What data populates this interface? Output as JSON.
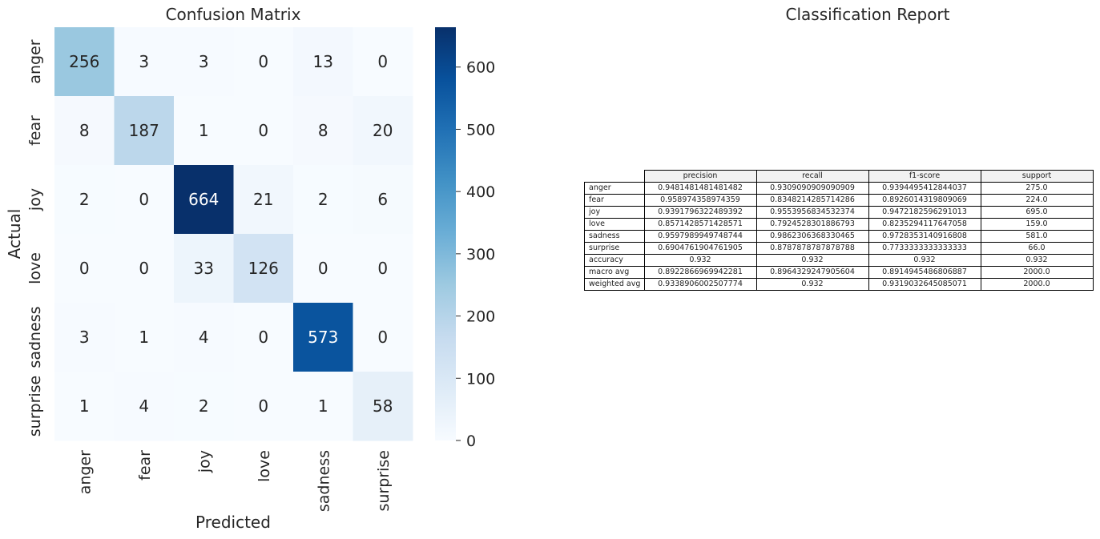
{
  "chart_data": [
    {
      "type": "heatmap",
      "title": "Confusion Matrix",
      "xlabel": "Predicted",
      "ylabel": "Actual",
      "x_categories": [
        "anger",
        "fear",
        "joy",
        "love",
        "sadness",
        "surprise"
      ],
      "y_categories": [
        "anger",
        "fear",
        "joy",
        "love",
        "sadness",
        "surprise"
      ],
      "values": [
        [
          256,
          3,
          3,
          0,
          13,
          0
        ],
        [
          8,
          187,
          1,
          0,
          8,
          20
        ],
        [
          2,
          0,
          664,
          21,
          2,
          6
        ],
        [
          0,
          0,
          33,
          126,
          0,
          0
        ],
        [
          3,
          1,
          4,
          0,
          573,
          0
        ],
        [
          1,
          4,
          2,
          0,
          1,
          58
        ]
      ],
      "colormap": "Blues",
      "colorbar": {
        "range": [
          0,
          664
        ],
        "ticks": [
          0,
          100,
          200,
          300,
          400,
          500,
          600
        ]
      }
    },
    {
      "type": "table",
      "title": "Classification Report",
      "columns": [
        "precision",
        "recall",
        "f1-score",
        "support"
      ],
      "rows": [
        {
          "label": "anger",
          "values": [
            "0.9481481481481482",
            "0.9309090909090909",
            "0.9394495412844037",
            "275.0"
          ]
        },
        {
          "label": "fear",
          "values": [
            "0.958974358974359",
            "0.8348214285714286",
            "0.8926014319809069",
            "224.0"
          ]
        },
        {
          "label": "joy",
          "values": [
            "0.9391796322489392",
            "0.9553956834532374",
            "0.9472182596291013",
            "695.0"
          ]
        },
        {
          "label": "love",
          "values": [
            "0.8571428571428571",
            "0.7924528301886793",
            "0.8235294117647058",
            "159.0"
          ]
        },
        {
          "label": "sadness",
          "values": [
            "0.9597989949748744",
            "0.9862306368330465",
            "0.9728353140916808",
            "581.0"
          ]
        },
        {
          "label": "surprise",
          "values": [
            "0.6904761904761905",
            "0.8787878787878788",
            "0.7733333333333333",
            "66.0"
          ]
        },
        {
          "label": "accuracy",
          "values": [
            "0.932",
            "0.932",
            "0.932",
            "0.932"
          ]
        },
        {
          "label": "macro avg",
          "values": [
            "0.8922866969942281",
            "0.8964329247905604",
            "0.8914945486806887",
            "2000.0"
          ]
        },
        {
          "label": "weighted avg",
          "values": [
            "0.9338906002507774",
            "0.932",
            "0.9319032645085071",
            "2000.0"
          ]
        }
      ]
    }
  ]
}
